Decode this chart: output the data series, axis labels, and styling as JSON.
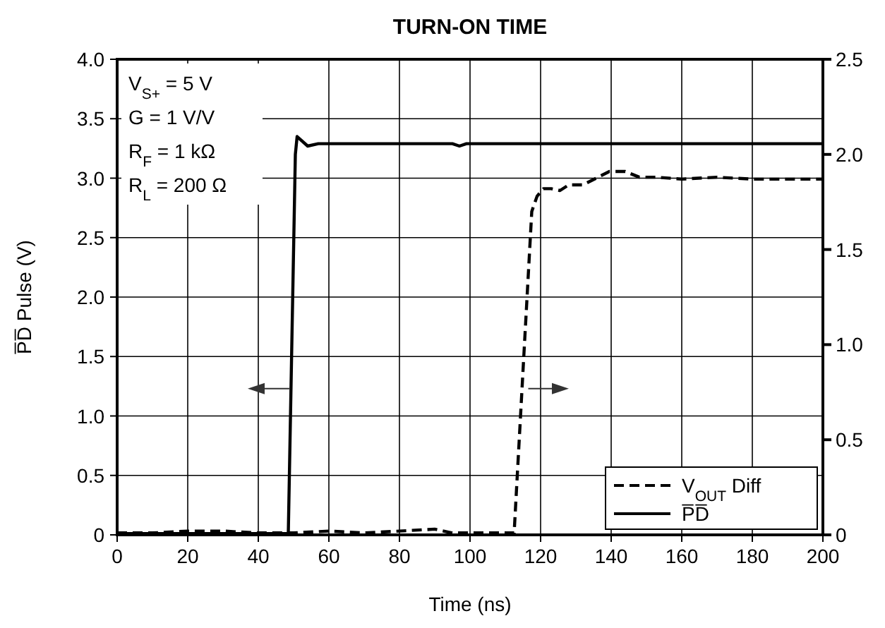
{
  "chart_data": {
    "type": "line",
    "title": "TURN-ON TIME",
    "xlabel": "Time (ns)",
    "ylabel": "P̅D̅ Pulse (V)",
    "annotations": [
      "V$_{S+}$ = 5 V",
      "G = 1 V/V",
      "R$_{F}$ = 1 kΩ",
      "R$_{L}$ = 200 Ω"
    ],
    "xlim": [
      0,
      200
    ],
    "xticks": [
      0,
      20,
      40,
      60,
      80,
      100,
      120,
      140,
      160,
      180,
      200
    ],
    "ylim": [
      0,
      4
    ],
    "yticks": [
      0,
      {
        "value": 0.5,
        "label": "0.5"
      },
      {
        "value": 1,
        "label": "1.0"
      },
      {
        "value": 1.5,
        "label": "1.5"
      },
      {
        "value": 2,
        "label": "2.0"
      },
      {
        "value": 2.5,
        "label": "2.5"
      },
      {
        "value": 3,
        "label": "3.0"
      },
      {
        "value": 3.5,
        "label": "3.5"
      },
      {
        "value": 4,
        "label": "4.0"
      }
    ],
    "y2lim": [
      0,
      2.5
    ],
    "y2ticks": [
      0,
      {
        "value": 0.5,
        "label": "0.5"
      },
      {
        "value": 1,
        "label": "1.0"
      },
      {
        "value": 1.5,
        "label": "1.5"
      },
      {
        "value": 2,
        "label": "2.0"
      },
      {
        "value": 2.5,
        "label": "2.5"
      }
    ],
    "grid": true,
    "legend": "bottom right",
    "series": [
      {
        "name": "V$_{OUT}$ Diff",
        "color": "#000000",
        "axis": "y2",
        "line_style": "dashed",
        "x": [
          0,
          10,
          20,
          30,
          40,
          50,
          60,
          70,
          80,
          90,
          95,
          100,
          105,
          112.5,
          114.8,
          117.5,
          119,
          120.8,
          123,
          125.5,
          128,
          132,
          139.5,
          144,
          148,
          153,
          160,
          170,
          180,
          190,
          200
        ],
        "values": [
          0.01,
          0.01,
          0.02,
          0.02,
          0.01,
          0.01,
          0.02,
          0.01,
          0.02,
          0.03,
          0.01,
          0.01,
          0.01,
          0.01,
          0.79,
          1.7,
          1.78,
          1.82,
          1.82,
          1.81,
          1.84,
          1.84,
          1.91,
          1.91,
          1.88,
          1.88,
          1.87,
          1.88,
          1.87,
          1.87,
          1.87
        ]
      },
      {
        "name": "P̅D̅",
        "color": "#000000",
        "line_style": "solid",
        "x": [
          0,
          20,
          40,
          48.5,
          50.5,
          51,
          54,
          57,
          95,
          97,
          99,
          200
        ],
        "values": [
          0.01,
          0.01,
          0.01,
          0.01,
          3.2,
          3.35,
          3.27,
          3.29,
          3.29,
          3.27,
          3.29,
          3.29
        ]
      }
    ]
  }
}
